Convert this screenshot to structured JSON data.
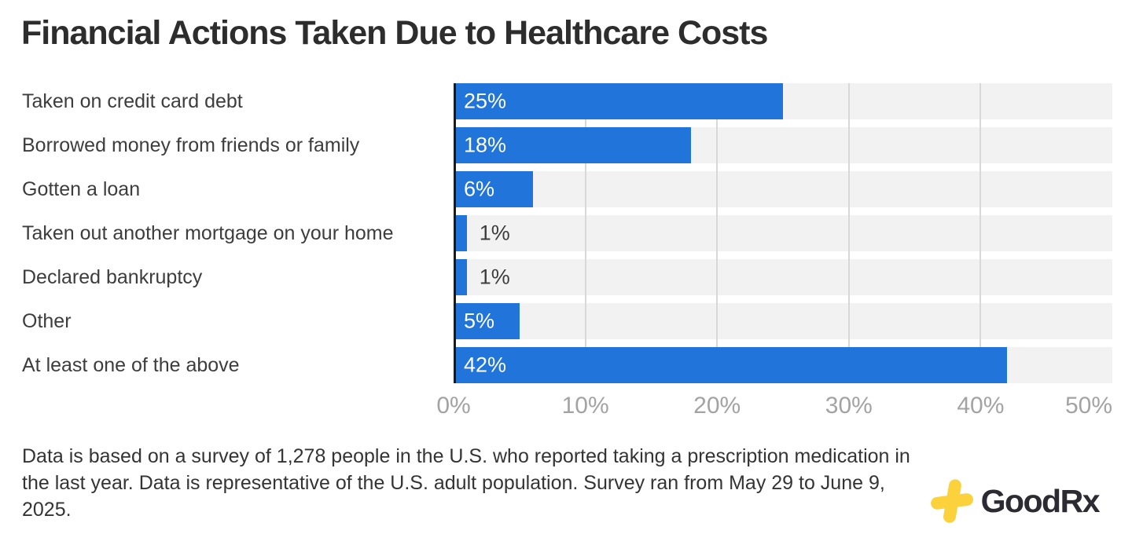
{
  "title": "Financial Actions Taken Due to Healthcare Costs",
  "chart_data": {
    "type": "bar",
    "orientation": "horizontal",
    "title": "Financial Actions Taken Due to Healthcare Costs",
    "categories": [
      "Taken on credit card debt",
      "Borrowed money from friends or family",
      "Gotten a loan",
      "Taken out another mortgage on your home",
      "Declared bankruptcy",
      "Other",
      "At least one of the above"
    ],
    "values": [
      25,
      18,
      6,
      1,
      1,
      5,
      42
    ],
    "value_labels": [
      "25%",
      "18%",
      "6%",
      "1%",
      "1%",
      "5%",
      "42%"
    ],
    "xlim": [
      0,
      50
    ],
    "x_ticks": [
      "0%",
      "10%",
      "20%",
      "30%",
      "40%",
      "50%"
    ],
    "grid": "vertical gridlines every 10%",
    "legend": "none",
    "bar_color": "#2174DA",
    "track_color": "#F2F2F2",
    "outside_label_threshold": 3
  },
  "footer": {
    "note": "Data is based on a survey of 1,278 people in the U.S. who reported taking a prescription medication in the last year. Data is representative of the U.S. adult population. Survey ran from May 29 to June 9, 2025."
  },
  "logo": {
    "text": "GoodRx",
    "cross_color": "#FBD23C"
  }
}
